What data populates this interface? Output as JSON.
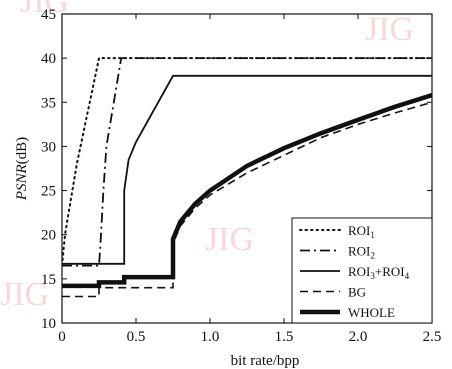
{
  "watermarks": [
    "JIG",
    "JIG",
    "JIG",
    "JIG"
  ],
  "chart_data": {
    "type": "line",
    "title": "",
    "xlabel": "bit rate/bpp",
    "ylabel_italic": "PSNR",
    "ylabel_unit": "(dB)",
    "xlim": [
      0,
      2.5
    ],
    "ylim": [
      10,
      45
    ],
    "xticks": [
      "0",
      "0.5",
      "1.0",
      "1.5",
      "2.0",
      "2.5"
    ],
    "xtick_values": [
      0,
      0.5,
      1.0,
      1.5,
      2.0,
      2.5
    ],
    "yticks": [
      "10",
      "15",
      "20",
      "25",
      "30",
      "35",
      "40",
      "45"
    ],
    "ytick_values": [
      10,
      15,
      20,
      25,
      30,
      35,
      40,
      45
    ],
    "grid": false,
    "legend_position": "bottom-right",
    "series": [
      {
        "name": "ROI",
        "sub": "1",
        "dash": "dotted",
        "x": [
          0,
          0.02,
          0.05,
          0.1,
          0.15,
          0.2,
          0.25,
          0.3,
          1.0,
          2.0,
          2.5
        ],
        "y": [
          16.5,
          20,
          23,
          28,
          32,
          36,
          40,
          40,
          40,
          40,
          40
        ]
      },
      {
        "name": "ROI",
        "sub": "2",
        "dash": "dashdot",
        "x": [
          0,
          0.25,
          0.26,
          0.28,
          0.3,
          0.35,
          0.4,
          0.42,
          1.0,
          2.0,
          2.5
        ],
        "y": [
          16.5,
          16.5,
          19,
          25,
          30,
          35,
          40,
          40,
          40,
          40,
          40
        ]
      },
      {
        "name": "ROI",
        "sub": "3",
        "name2": "+ROI",
        "sub2": "4",
        "dash": "solid",
        "x": [
          0,
          0.42,
          0.42,
          0.45,
          0.5,
          0.55,
          0.6,
          0.65,
          0.7,
          0.75,
          2.5
        ],
        "y": [
          16.7,
          16.7,
          25,
          28.5,
          30.5,
          32,
          33.5,
          35,
          36.5,
          38,
          38
        ]
      },
      {
        "name": "BG",
        "sub": "",
        "dash": "dashed",
        "x": [
          0,
          0.1,
          0.25,
          0.25,
          0.75,
          0.75,
          0.8,
          0.9,
          1.0,
          1.25,
          1.5,
          1.75,
          2.0,
          2.25,
          2.5
        ],
        "y": [
          13,
          13,
          13,
          14,
          14,
          19,
          21,
          23,
          24.5,
          27,
          29,
          31,
          32.5,
          33.8,
          35
        ]
      },
      {
        "name": "WHOLE",
        "sub": "",
        "dash": "thick",
        "x": [
          0,
          0.25,
          0.25,
          0.42,
          0.42,
          0.75,
          0.75,
          0.8,
          0.9,
          1.0,
          1.25,
          1.5,
          1.75,
          2.0,
          2.25,
          2.5
        ],
        "y": [
          14.2,
          14.2,
          14.6,
          14.6,
          15.2,
          15.2,
          19.5,
          21.5,
          23.5,
          25,
          27.8,
          29.8,
          31.5,
          33,
          34.5,
          35.8
        ]
      }
    ]
  }
}
